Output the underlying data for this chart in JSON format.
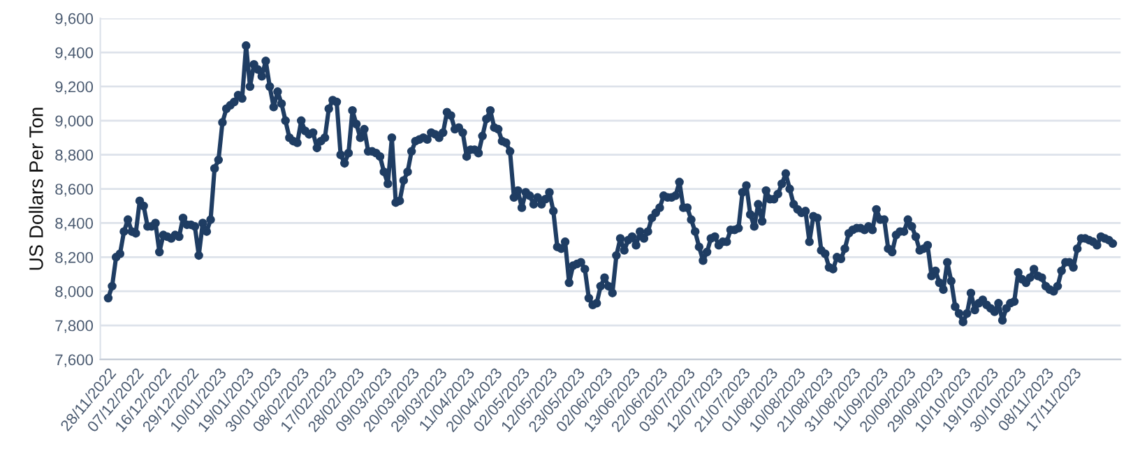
{
  "chart_data": {
    "type": "line",
    "ylabel": "US Dollars Per Ton",
    "categories": [
      "28/11/2022",
      null,
      null,
      null,
      null,
      null,
      null,
      "07/12/2022",
      null,
      null,
      null,
      null,
      null,
      null,
      "16/12/2022",
      null,
      null,
      null,
      null,
      null,
      null,
      "29/12/2022",
      null,
      null,
      null,
      null,
      null,
      null,
      "10/01/2023",
      null,
      null,
      null,
      null,
      null,
      null,
      "19/01/2023",
      null,
      null,
      null,
      null,
      null,
      null,
      "30/01/2023",
      null,
      null,
      null,
      null,
      null,
      null,
      "08/02/2023",
      null,
      null,
      null,
      null,
      null,
      null,
      "17/02/2023",
      null,
      null,
      null,
      null,
      null,
      null,
      "28/02/2023",
      null,
      null,
      null,
      null,
      null,
      null,
      "09/03/2023",
      null,
      null,
      null,
      null,
      null,
      null,
      "20/03/2023",
      null,
      null,
      null,
      null,
      null,
      null,
      "29/03/2023",
      null,
      null,
      null,
      null,
      null,
      null,
      "11/04/2023",
      null,
      null,
      null,
      null,
      null,
      null,
      "20/04/2023",
      null,
      null,
      null,
      null,
      null,
      null,
      "02/05/2023",
      null,
      null,
      null,
      null,
      null,
      null,
      "12/05/2023",
      null,
      null,
      null,
      null,
      null,
      null,
      "23/05/2023",
      null,
      null,
      null,
      null,
      null,
      null,
      "02/06/2023",
      null,
      null,
      null,
      null,
      null,
      null,
      "13/06/2023",
      null,
      null,
      null,
      null,
      null,
      null,
      "22/06/2023",
      null,
      null,
      null,
      null,
      null,
      null,
      "03/07/2023",
      null,
      null,
      null,
      null,
      null,
      null,
      "12/07/2023",
      null,
      null,
      null,
      null,
      null,
      null,
      "21/07/2023",
      null,
      null,
      null,
      null,
      null,
      null,
      "01/08/2023",
      null,
      null,
      null,
      null,
      null,
      null,
      "10/08/2023",
      null,
      null,
      null,
      null,
      null,
      null,
      "21/08/2023",
      null,
      null,
      null,
      null,
      null,
      null,
      "31/08/2023",
      null,
      null,
      null,
      null,
      null,
      null,
      "11/09/2023",
      null,
      null,
      null,
      null,
      null,
      null,
      "20/09/2023",
      null,
      null,
      null,
      null,
      null,
      null,
      "29/09/2023",
      null,
      null,
      null,
      null,
      null,
      null,
      "10/10/2023",
      null,
      null,
      null,
      null,
      null,
      null,
      "19/10/2023",
      null,
      null,
      null,
      null,
      null,
      null,
      "30/10/2023",
      null,
      null,
      null,
      null,
      null,
      null,
      "08/11/2023",
      null,
      null,
      null,
      null,
      null,
      null,
      "17/11/2023",
      null,
      null,
      null,
      null,
      null,
      null,
      null,
      null,
      null,
      null
    ],
    "series": [
      {
        "color": "#1f3d63",
        "values": [
          7960,
          8030,
          8200,
          8220,
          8350,
          8420,
          8350,
          8340,
          8530,
          8500,
          8380,
          8380,
          8400,
          8230,
          8330,
          8320,
          8310,
          8330,
          8320,
          8430,
          8390,
          8390,
          8380,
          8210,
          8400,
          8350,
          8420,
          8720,
          8770,
          8990,
          9070,
          9090,
          9110,
          9150,
          9130,
          9440,
          9200,
          9330,
          9300,
          9260,
          9350,
          9200,
          9080,
          9170,
          9100,
          9000,
          8900,
          8880,
          8870,
          9000,
          8940,
          8920,
          8930,
          8840,
          8880,
          8900,
          9070,
          9120,
          9110,
          8800,
          8750,
          8810,
          9060,
          8980,
          8900,
          8950,
          8820,
          8820,
          8810,
          8790,
          8700,
          8630,
          8900,
          8520,
          8530,
          8650,
          8700,
          8820,
          8880,
          8890,
          8900,
          8890,
          8930,
          8920,
          8900,
          8930,
          9050,
          9030,
          8950,
          8960,
          8930,
          8790,
          8830,
          8830,
          8810,
          8910,
          9010,
          9060,
          8960,
          8950,
          8880,
          8870,
          8820,
          8550,
          8590,
          8490,
          8580,
          8560,
          8510,
          8550,
          8510,
          8540,
          8580,
          8470,
          8260,
          8250,
          8290,
          8050,
          8150,
          8160,
          8170,
          8130,
          7960,
          7920,
          7930,
          8030,
          8080,
          8030,
          7990,
          8210,
          8310,
          8240,
          8300,
          8320,
          8270,
          8350,
          8310,
          8350,
          8430,
          8460,
          8490,
          8560,
          8550,
          8550,
          8560,
          8640,
          8490,
          8490,
          8420,
          8350,
          8260,
          8180,
          8230,
          8310,
          8320,
          8270,
          8290,
          8290,
          8360,
          8360,
          8370,
          8580,
          8620,
          8450,
          8380,
          8510,
          8410,
          8590,
          8540,
          8540,
          8570,
          8630,
          8690,
          8600,
          8510,
          8480,
          8460,
          8470,
          8290,
          8440,
          8430,
          8240,
          8220,
          8140,
          8130,
          8200,
          8190,
          8250,
          8340,
          8360,
          8370,
          8370,
          8360,
          8380,
          8360,
          8480,
          8420,
          8420,
          8250,
          8230,
          8330,
          8350,
          8350,
          8420,
          8380,
          8320,
          8240,
          8250,
          8270,
          8090,
          8120,
          8050,
          8010,
          8170,
          8060,
          7910,
          7870,
          7820,
          7870,
          7990,
          7890,
          7930,
          7950,
          7920,
          7900,
          7880,
          7930,
          7830,
          7900,
          7930,
          7940,
          8110,
          8070,
          8050,
          8080,
          8130,
          8090,
          8080,
          8030,
          8010,
          8000,
          8030,
          8120,
          8170,
          8170,
          8140,
          8250,
          8310,
          8310,
          8300,
          8290,
          8270,
          8320,
          8310,
          8300,
          8280
        ]
      }
    ],
    "ylim": [
      7600,
      9600
    ],
    "yticks": [
      {
        "value": 7600,
        "label": "7,600"
      },
      {
        "value": 7800,
        "label": "7,800"
      },
      {
        "value": 8000,
        "label": "8,000"
      },
      {
        "value": 8200,
        "label": "8,200"
      },
      {
        "value": 8400,
        "label": "8,400"
      },
      {
        "value": 8600,
        "label": "8,600"
      },
      {
        "value": 8800,
        "label": "8,800"
      },
      {
        "value": 9000,
        "label": "9,000"
      },
      {
        "value": 9200,
        "label": "9,200"
      },
      {
        "value": 9400,
        "label": "9,400"
      },
      {
        "value": 9600,
        "label": "9,600"
      }
    ],
    "grid": "y",
    "marker": "circle",
    "line_style": "solid"
  }
}
